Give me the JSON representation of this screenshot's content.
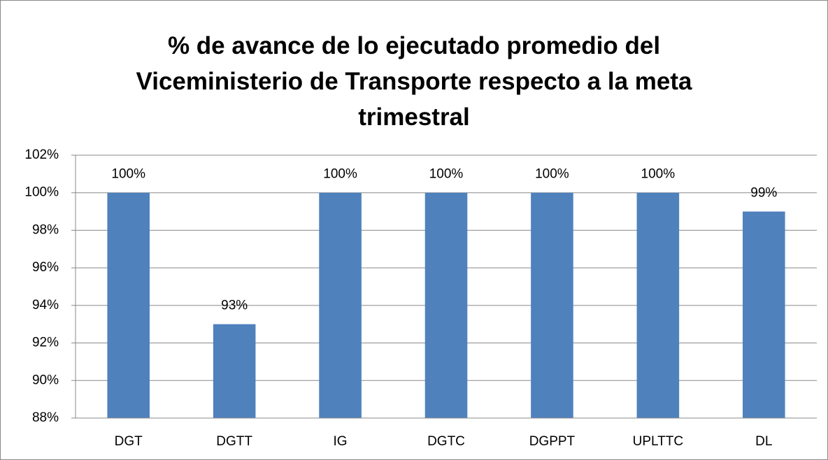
{
  "chart_data": {
    "type": "bar",
    "title": "% de avance de lo ejecutado promedio del Viceministerio de Transporte respecto a la meta trimestral",
    "categories": [
      "DGT",
      "DGTT",
      "IG",
      "DGTC",
      "DGPPT",
      "UPLTTC",
      "DL"
    ],
    "values": [
      100,
      93,
      100,
      100,
      100,
      100,
      99
    ],
    "value_labels": [
      "100%",
      "93%",
      "100%",
      "100%",
      "100%",
      "100%",
      "99%"
    ],
    "color": "#4f81bd",
    "ylim": [
      88,
      102
    ],
    "yticks": [
      {
        "value": 88,
        "label": "88%"
      },
      {
        "value": 90,
        "label": "90%"
      },
      {
        "value": 92,
        "label": "92%"
      },
      {
        "value": 94,
        "label": "94%"
      },
      {
        "value": 96,
        "label": "96%"
      },
      {
        "value": 98,
        "label": "98%"
      },
      {
        "value": 100,
        "label": "100%"
      },
      {
        "value": 102,
        "label": "102%"
      }
    ],
    "grid": true
  }
}
